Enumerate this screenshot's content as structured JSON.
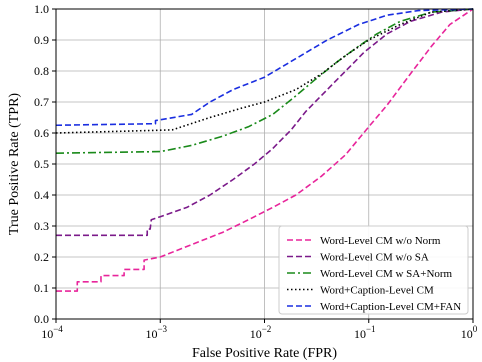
{
  "chart_data": {
    "type": "line",
    "xlabel": "False Positive Rate (FPR)",
    "ylabel": "True Positive Rate (TPR)",
    "x_scale": "log",
    "xlim": [
      0.0001,
      1
    ],
    "ylim": [
      0,
      1
    ],
    "x_ticks": [
      {
        "value": 0.0001,
        "base": "10",
        "exp": "−4"
      },
      {
        "value": 0.001,
        "base": "10",
        "exp": "−3"
      },
      {
        "value": 0.01,
        "base": "10",
        "exp": "−2"
      },
      {
        "value": 0.1,
        "base": "10",
        "exp": "−1"
      },
      {
        "value": 1,
        "base": "10",
        "exp": "0"
      }
    ],
    "y_ticks": [
      {
        "value": 0.0,
        "label": "0.0"
      },
      {
        "value": 0.1,
        "label": "0.1"
      },
      {
        "value": 0.2,
        "label": "0.2"
      },
      {
        "value": 0.3,
        "label": "0.3"
      },
      {
        "value": 0.4,
        "label": "0.4"
      },
      {
        "value": 0.5,
        "label": "0.5"
      },
      {
        "value": 0.6,
        "label": "0.6"
      },
      {
        "value": 0.7,
        "label": "0.7"
      },
      {
        "value": 0.8,
        "label": "0.8"
      },
      {
        "value": 0.9,
        "label": "0.9"
      },
      {
        "value": 1.0,
        "label": "1.0"
      }
    ],
    "grid": true,
    "legend": "lower-right",
    "series": [
      {
        "name": "Word-Level CM w/o Norm",
        "color": "#e8259b",
        "dash": "6,3",
        "points": [
          [
            0.0001,
            0.09
          ],
          [
            0.00016,
            0.09
          ],
          [
            0.00016,
            0.12
          ],
          [
            0.00027,
            0.12
          ],
          [
            0.00027,
            0.14
          ],
          [
            0.00045,
            0.14
          ],
          [
            0.00045,
            0.16
          ],
          [
            0.0007,
            0.16
          ],
          [
            0.0007,
            0.19
          ],
          [
            0.001,
            0.2
          ],
          [
            0.002,
            0.24
          ],
          [
            0.004,
            0.28
          ],
          [
            0.007,
            0.32
          ],
          [
            0.012,
            0.36
          ],
          [
            0.02,
            0.4
          ],
          [
            0.035,
            0.46
          ],
          [
            0.06,
            0.53
          ],
          [
            0.1,
            0.62
          ],
          [
            0.15,
            0.69
          ],
          [
            0.25,
            0.79
          ],
          [
            0.4,
            0.88
          ],
          [
            0.6,
            0.95
          ],
          [
            1,
            1.0
          ]
        ]
      },
      {
        "name": "Word-Level CM w/o SA",
        "color": "#7b1a8a",
        "dash": "6,3",
        "points": [
          [
            0.0001,
            0.27
          ],
          [
            0.00075,
            0.27
          ],
          [
            0.00075,
            0.29
          ],
          [
            0.0008,
            0.29
          ],
          [
            0.00082,
            0.32
          ],
          [
            0.001,
            0.33
          ],
          [
            0.0018,
            0.36
          ],
          [
            0.003,
            0.4
          ],
          [
            0.005,
            0.45
          ],
          [
            0.008,
            0.5
          ],
          [
            0.012,
            0.55
          ],
          [
            0.018,
            0.61
          ],
          [
            0.025,
            0.67
          ],
          [
            0.04,
            0.74
          ],
          [
            0.06,
            0.8
          ],
          [
            0.09,
            0.86
          ],
          [
            0.15,
            0.92
          ],
          [
            0.25,
            0.96
          ],
          [
            0.5,
            0.99
          ],
          [
            1,
            1.0
          ]
        ]
      },
      {
        "name": "Word-Level CM w SA+Norm",
        "color": "#1a8a1a",
        "dash": "8,3,2,3",
        "points": [
          [
            0.0001,
            0.535
          ],
          [
            0.001,
            0.54
          ],
          [
            0.002,
            0.56
          ],
          [
            0.004,
            0.59
          ],
          [
            0.007,
            0.62
          ],
          [
            0.012,
            0.66
          ],
          [
            0.02,
            0.72
          ],
          [
            0.03,
            0.77
          ],
          [
            0.05,
            0.83
          ],
          [
            0.08,
            0.88
          ],
          [
            0.12,
            0.92
          ],
          [
            0.2,
            0.96
          ],
          [
            0.4,
            0.99
          ],
          [
            1,
            1.0
          ]
        ]
      },
      {
        "name": "Word+Caption-Level CM",
        "color": "#000000",
        "dash": "1.5,2.5",
        "points": [
          [
            0.0001,
            0.6
          ],
          [
            0.0013,
            0.61
          ],
          [
            0.003,
            0.65
          ],
          [
            0.006,
            0.68
          ],
          [
            0.01,
            0.7
          ],
          [
            0.02,
            0.74
          ],
          [
            0.035,
            0.79
          ],
          [
            0.06,
            0.85
          ],
          [
            0.1,
            0.9
          ],
          [
            0.2,
            0.95
          ],
          [
            0.4,
            0.99
          ],
          [
            1,
            1.0
          ]
        ]
      },
      {
        "name": "Word+Caption-Level CM+FAN",
        "color": "#1a2ee0",
        "dash": "6,3",
        "points": [
          [
            0.0001,
            0.625
          ],
          [
            0.0009,
            0.63
          ],
          [
            0.0009,
            0.64
          ],
          [
            0.002,
            0.66
          ],
          [
            0.003,
            0.7
          ],
          [
            0.005,
            0.74
          ],
          [
            0.01,
            0.78
          ],
          [
            0.02,
            0.84
          ],
          [
            0.04,
            0.9
          ],
          [
            0.08,
            0.95
          ],
          [
            0.15,
            0.98
          ],
          [
            0.3,
            0.995
          ],
          [
            1,
            1.0
          ]
        ]
      }
    ]
  }
}
